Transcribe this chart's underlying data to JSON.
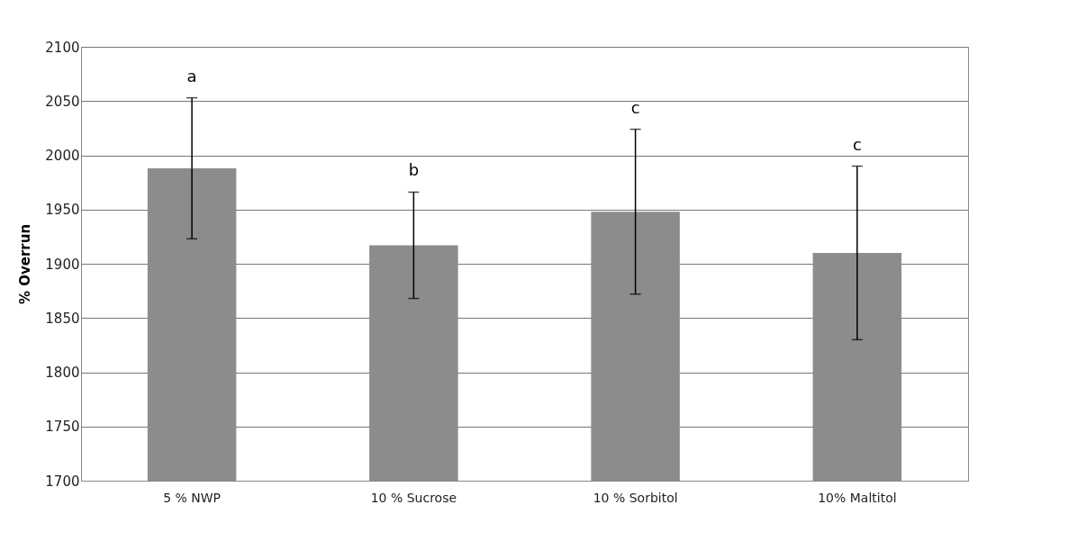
{
  "chart_data": {
    "type": "bar",
    "ylabel": "% Overrun",
    "categories": [
      "5 % NWP",
      "10 % Sucrose",
      "10 % Sorbitol",
      "10% Maltitol"
    ],
    "values": [
      1988,
      1917,
      1948,
      1910
    ],
    "errors": [
      65,
      49,
      76,
      80
    ],
    "color": "#8c8c8c",
    "ylim": [
      1700,
      2100
    ],
    "yticks": [
      1700,
      1750,
      1800,
      1850,
      1900,
      1950,
      2000,
      2050,
      2100
    ],
    "grid": "y",
    "annotations": [
      "a",
      "b",
      "c",
      "c"
    ]
  }
}
